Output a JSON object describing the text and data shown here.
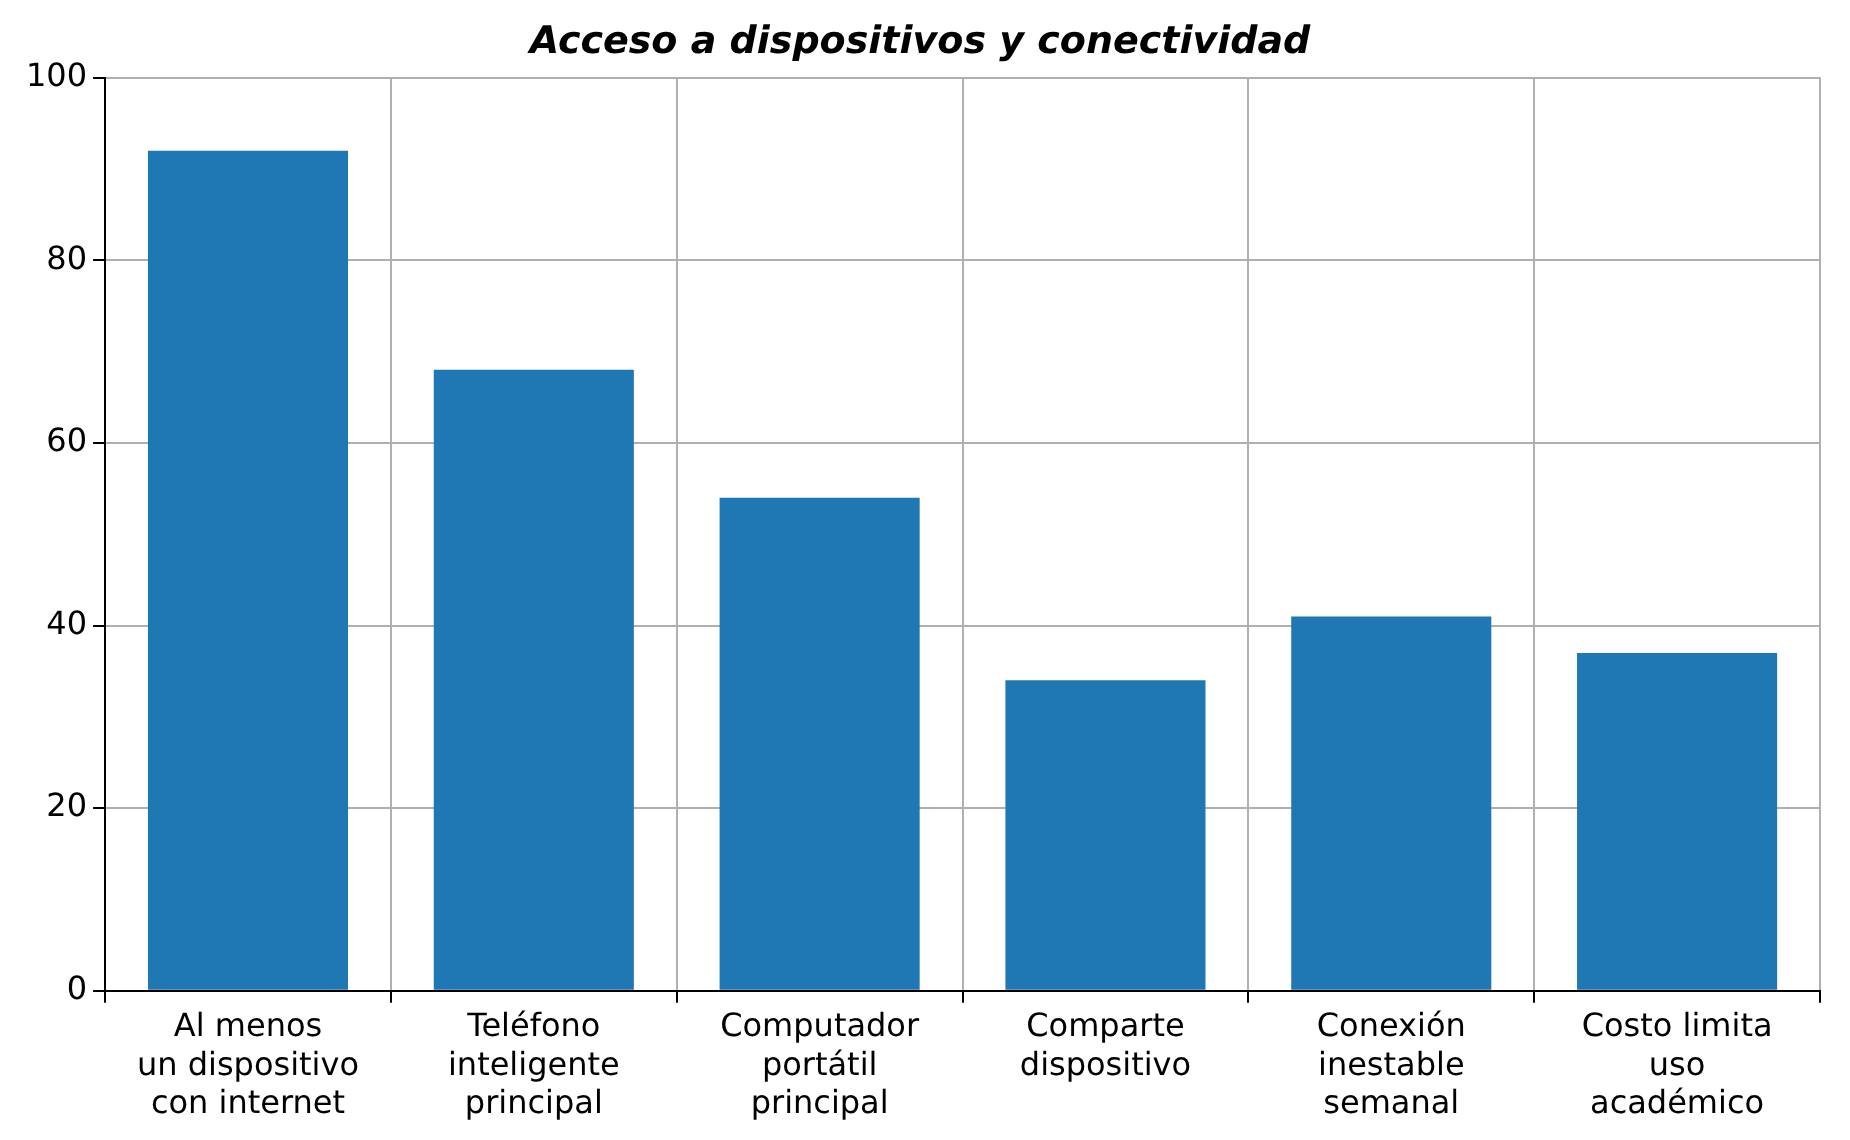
{
  "chart_data": {
    "type": "bar",
    "title": "Acceso a dispositivos y conectividad",
    "categories": [
      "Al menos\nun dispositivo\ncon internet",
      "Teléfono\ninteligente\nprincipal",
      "Computador\nportátil\nprincipal",
      "Comparte\ndispositivo",
      "Conexión\ninestable\nsemanal",
      "Costo limita\nuso\nacadémico"
    ],
    "values": [
      92,
      68,
      54,
      34,
      41,
      37
    ],
    "color": "#1f77b4",
    "ylim": [
      0,
      100
    ],
    "yticks": [
      0,
      20,
      40,
      60,
      80,
      100
    ],
    "grid": true
  }
}
